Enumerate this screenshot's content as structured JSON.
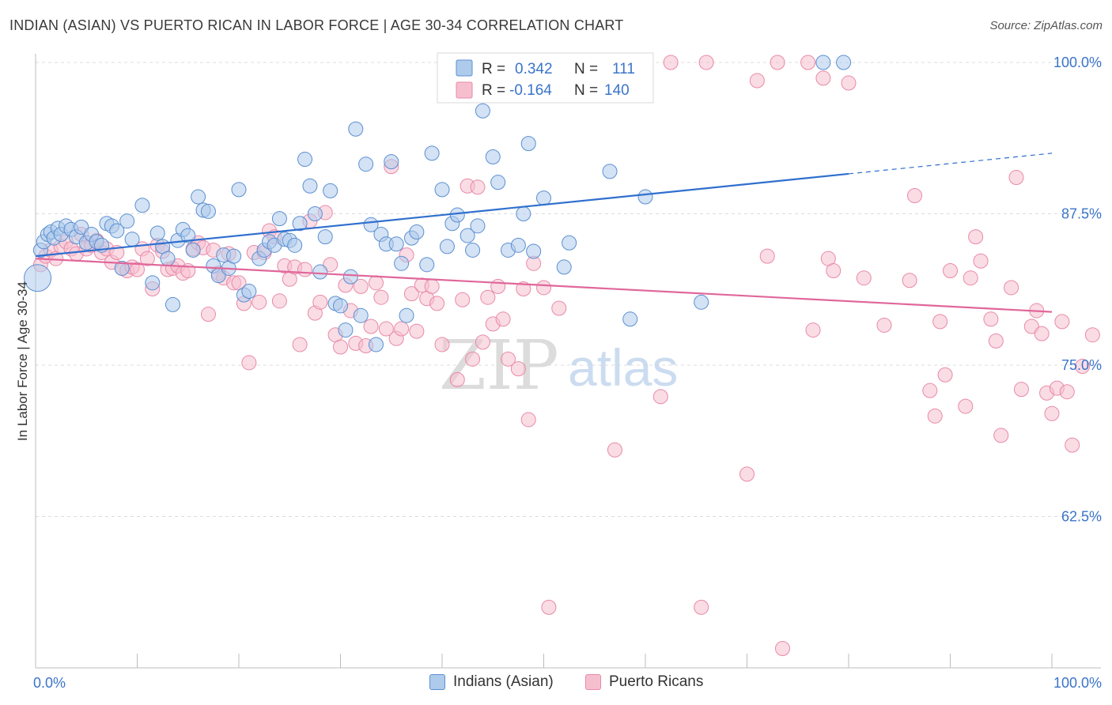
{
  "title": "INDIAN (ASIAN) VS PUERTO RICAN IN LABOR FORCE | AGE 30-34 CORRELATION CHART",
  "source": "Source: ZipAtlas.com",
  "watermark": {
    "zip": "ZIP",
    "atlas": "atlas"
  },
  "legend": {
    "rows": [
      {
        "r_label": "R =",
        "r_value": "0.342",
        "n_label": "N =",
        "n_value": "111"
      },
      {
        "r_label": "R =",
        "r_value": "-0.164",
        "n_label": "N =",
        "n_value": "140"
      }
    ],
    "bottom": [
      "Indians (Asian)",
      "Puerto Ricans"
    ]
  },
  "colors": {
    "indian_fill": "#aecbeb",
    "indian_stroke": "#5b8fd1",
    "indian_line": "#2f6fce",
    "pr_fill": "#f6bfd0",
    "pr_stroke": "#e88aa8",
    "pr_line": "#e0679a",
    "value_text": "#3a74c9",
    "axis_text": "#3a74c9",
    "grid": "#dcdcdc"
  },
  "chart_data": {
    "type": "scatter",
    "xlabel": "",
    "ylabel": "In Labor Force | Age 30-34",
    "xlim": [
      0,
      100
    ],
    "ylim": [
      50,
      100
    ],
    "x_tick_labels": [
      "0.0%",
      "100.0%"
    ],
    "y_ticks": [
      62.5,
      75.0,
      87.5,
      100.0
    ],
    "y_tick_labels": [
      "62.5%",
      "75.0%",
      "87.5%",
      "100.0%"
    ],
    "grid": "horizontal dashed",
    "legend_position": "top-center",
    "series": [
      {
        "name": "Indians (Asian)",
        "trend": {
          "x0": 0,
          "y0": 84.0,
          "x1": 80,
          "y1": 90.8,
          "dashed_to_x": 100,
          "dashed_to_y": 92.5
        },
        "points": [
          [
            0.2,
            82.2
          ],
          [
            0.5,
            84.5
          ],
          [
            0.8,
            85.2
          ],
          [
            1.2,
            85.8
          ],
          [
            1.5,
            86.0
          ],
          [
            1.8,
            85.5
          ],
          [
            2.2,
            86.3
          ],
          [
            2.5,
            85.8
          ],
          [
            3.0,
            86.5
          ],
          [
            3.5,
            86.2
          ],
          [
            4.0,
            85.6
          ],
          [
            4.5,
            86.4
          ],
          [
            5.0,
            85.1
          ],
          [
            5.5,
            85.8
          ],
          [
            6.0,
            85.2
          ],
          [
            6.5,
            84.9
          ],
          [
            7.0,
            86.7
          ],
          [
            7.5,
            86.5
          ],
          [
            8.0,
            86.1
          ],
          [
            8.5,
            83.0
          ],
          [
            9.0,
            86.9
          ],
          [
            9.5,
            85.4
          ],
          [
            10.5,
            88.2
          ],
          [
            11.5,
            81.8
          ],
          [
            12.0,
            85.9
          ],
          [
            12.5,
            84.8
          ],
          [
            13.0,
            83.8
          ],
          [
            13.5,
            80.0
          ],
          [
            14.0,
            85.3
          ],
          [
            14.5,
            86.2
          ],
          [
            15.0,
            85.7
          ],
          [
            15.5,
            84.5
          ],
          [
            16.0,
            88.9
          ],
          [
            16.5,
            87.8
          ],
          [
            17.0,
            87.7
          ],
          [
            17.5,
            83.2
          ],
          [
            18.0,
            82.4
          ],
          [
            18.5,
            84.1
          ],
          [
            19.0,
            83.0
          ],
          [
            19.5,
            84.0
          ],
          [
            20.0,
            89.5
          ],
          [
            20.5,
            80.8
          ],
          [
            21.0,
            81.1
          ],
          [
            22.0,
            83.8
          ],
          [
            22.5,
            84.5
          ],
          [
            23.0,
            85.2
          ],
          [
            23.5,
            84.9
          ],
          [
            24.0,
            87.1
          ],
          [
            24.5,
            85.4
          ],
          [
            25.0,
            85.3
          ],
          [
            25.5,
            84.9
          ],
          [
            26.0,
            86.7
          ],
          [
            26.5,
            92.0
          ],
          [
            27.0,
            89.8
          ],
          [
            27.5,
            87.5
          ],
          [
            28.0,
            82.7
          ],
          [
            28.5,
            85.6
          ],
          [
            29.0,
            89.4
          ],
          [
            29.5,
            80.1
          ],
          [
            30.0,
            79.9
          ],
          [
            30.5,
            77.9
          ],
          [
            31.0,
            82.3
          ],
          [
            31.5,
            94.5
          ],
          [
            32.0,
            79.1
          ],
          [
            32.5,
            91.6
          ],
          [
            33.0,
            86.6
          ],
          [
            33.5,
            76.7
          ],
          [
            34.0,
            85.8
          ],
          [
            34.5,
            85.0
          ],
          [
            35.0,
            91.8
          ],
          [
            35.5,
            85.0
          ],
          [
            36.0,
            83.4
          ],
          [
            36.5,
            79.1
          ],
          [
            37.0,
            85.5
          ],
          [
            37.5,
            86.0
          ],
          [
            38.5,
            83.3
          ],
          [
            39.0,
            92.5
          ],
          [
            40.0,
            89.5
          ],
          [
            40.5,
            84.8
          ],
          [
            41.0,
            86.7
          ],
          [
            41.5,
            87.4
          ],
          [
            42.5,
            85.7
          ],
          [
            43.0,
            84.5
          ],
          [
            43.5,
            86.5
          ],
          [
            44.0,
            96.0
          ],
          [
            45.0,
            92.2
          ],
          [
            45.5,
            90.1
          ],
          [
            46.5,
            84.5
          ],
          [
            47.5,
            84.9
          ],
          [
            48.0,
            87.5
          ],
          [
            48.5,
            93.3
          ],
          [
            49.0,
            84.4
          ],
          [
            50.0,
            88.8
          ],
          [
            51.5,
            100.0
          ],
          [
            52.0,
            83.1
          ],
          [
            52.5,
            85.1
          ],
          [
            55.0,
            100.0
          ],
          [
            55.5,
            100.0
          ],
          [
            56.5,
            91.0
          ],
          [
            58.5,
            78.8
          ],
          [
            60.0,
            88.9
          ],
          [
            65.5,
            80.2
          ],
          [
            77.5,
            100.0
          ],
          [
            79.5,
            100.0
          ]
        ]
      },
      {
        "name": "Puerto Ricans",
        "trend": {
          "x0": 0,
          "y0": 83.8,
          "x1": 100,
          "y1": 79.4
        },
        "points": [
          [
            0.5,
            83.3
          ],
          [
            1.0,
            84.0
          ],
          [
            1.5,
            84.5
          ],
          [
            2.0,
            83.8
          ],
          [
            2.5,
            84.8
          ],
          [
            3.0,
            85.2
          ],
          [
            3.5,
            84.6
          ],
          [
            4.0,
            84.2
          ],
          [
            4.5,
            85.8
          ],
          [
            5.0,
            84.6
          ],
          [
            5.5,
            84.9
          ],
          [
            6.0,
            85.3
          ],
          [
            6.5,
            84.3
          ],
          [
            7.0,
            84.6
          ],
          [
            7.5,
            83.5
          ],
          [
            8.0,
            84.3
          ],
          [
            8.5,
            83.0
          ],
          [
            9.0,
            82.8
          ],
          [
            9.5,
            83.1
          ],
          [
            10.0,
            82.9
          ],
          [
            10.5,
            84.6
          ],
          [
            11.0,
            83.8
          ],
          [
            11.5,
            81.3
          ],
          [
            12.0,
            84.9
          ],
          [
            12.5,
            84.4
          ],
          [
            13.0,
            82.9
          ],
          [
            13.5,
            83.0
          ],
          [
            14.0,
            83.2
          ],
          [
            14.5,
            82.6
          ],
          [
            15.0,
            82.8
          ],
          [
            15.5,
            84.6
          ],
          [
            16.0,
            85.1
          ],
          [
            16.5,
            84.7
          ],
          [
            17.0,
            79.2
          ],
          [
            17.5,
            84.5
          ],
          [
            18.0,
            82.6
          ],
          [
            18.5,
            82.2
          ],
          [
            19.0,
            84.2
          ],
          [
            19.5,
            81.8
          ],
          [
            20.0,
            81.8
          ],
          [
            20.5,
            80.1
          ],
          [
            21.0,
            75.2
          ],
          [
            21.5,
            84.3
          ],
          [
            22.0,
            80.2
          ],
          [
            22.5,
            84.3
          ],
          [
            23.0,
            86.1
          ],
          [
            23.5,
            85.6
          ],
          [
            24.0,
            80.3
          ],
          [
            24.5,
            83.2
          ],
          [
            25.0,
            82.1
          ],
          [
            25.5,
            83.1
          ],
          [
            26.0,
            76.7
          ],
          [
            26.5,
            82.9
          ],
          [
            27.0,
            86.9
          ],
          [
            27.5,
            79.3
          ],
          [
            28.0,
            80.2
          ],
          [
            28.5,
            87.6
          ],
          [
            29.0,
            83.3
          ],
          [
            29.5,
            77.5
          ],
          [
            30.0,
            76.5
          ],
          [
            30.5,
            81.6
          ],
          [
            31.0,
            79.5
          ],
          [
            31.5,
            76.8
          ],
          [
            32.0,
            81.5
          ],
          [
            32.5,
            76.6
          ],
          [
            33.0,
            78.2
          ],
          [
            33.5,
            81.8
          ],
          [
            34.0,
            80.6
          ],
          [
            34.5,
            78.0
          ],
          [
            35.0,
            91.4
          ],
          [
            35.5,
            77.2
          ],
          [
            36.0,
            78.0
          ],
          [
            36.5,
            84.1
          ],
          [
            37.0,
            80.9
          ],
          [
            37.5,
            77.8
          ],
          [
            38.0,
            81.6
          ],
          [
            38.5,
            80.5
          ],
          [
            39.0,
            81.5
          ],
          [
            39.5,
            80.1
          ],
          [
            40.0,
            76.7
          ],
          [
            41.5,
            73.8
          ],
          [
            42.0,
            80.4
          ],
          [
            42.5,
            89.8
          ],
          [
            43.0,
            75.5
          ],
          [
            43.5,
            89.7
          ],
          [
            44.0,
            76.9
          ],
          [
            44.5,
            80.6
          ],
          [
            45.0,
            78.4
          ],
          [
            45.5,
            81.5
          ],
          [
            46.0,
            78.8
          ],
          [
            46.5,
            75.5
          ],
          [
            47.5,
            74.7
          ],
          [
            48.0,
            81.3
          ],
          [
            48.5,
            70.5
          ],
          [
            49.0,
            83.4
          ],
          [
            50.0,
            81.4
          ],
          [
            50.5,
            55.0
          ],
          [
            51.5,
            79.7
          ],
          [
            53.5,
            100.0
          ],
          [
            54.0,
            100.0
          ],
          [
            55.0,
            100.0
          ],
          [
            57.0,
            68.0
          ],
          [
            58.5,
            100.0
          ],
          [
            59.0,
            100.0
          ],
          [
            61.5,
            72.4
          ],
          [
            62.5,
            100.0
          ],
          [
            65.5,
            55.0
          ],
          [
            66.0,
            100.0
          ],
          [
            70.0,
            66.0
          ],
          [
            71.0,
            98.5
          ],
          [
            72.0,
            84.0
          ],
          [
            73.0,
            100.0
          ],
          [
            73.5,
            51.6
          ],
          [
            76.0,
            100.0
          ],
          [
            76.5,
            77.9
          ],
          [
            77.5,
            98.7
          ],
          [
            78.0,
            83.8
          ],
          [
            78.5,
            82.8
          ],
          [
            80.0,
            98.3
          ],
          [
            81.5,
            82.2
          ],
          [
            83.5,
            78.3
          ],
          [
            86.0,
            82.0
          ],
          [
            86.5,
            89.0
          ],
          [
            88.0,
            72.9
          ],
          [
            88.5,
            70.8
          ],
          [
            89.0,
            78.6
          ],
          [
            89.5,
            74.2
          ],
          [
            90.0,
            82.8
          ],
          [
            91.5,
            71.6
          ],
          [
            92.0,
            82.2
          ],
          [
            92.5,
            85.6
          ],
          [
            93.0,
            83.6
          ],
          [
            94.0,
            78.8
          ],
          [
            94.5,
            77.0
          ],
          [
            95.0,
            69.2
          ],
          [
            96.0,
            81.4
          ],
          [
            96.5,
            90.5
          ],
          [
            97.0,
            73.0
          ],
          [
            98.0,
            78.2
          ],
          [
            98.5,
            79.5
          ],
          [
            99.0,
            77.6
          ],
          [
            99.5,
            72.7
          ],
          [
            100.0,
            71.0
          ],
          [
            100.5,
            73.1
          ],
          [
            101.0,
            78.6
          ],
          [
            101.5,
            72.8
          ],
          [
            102.0,
            68.4
          ],
          [
            103.0,
            74.9
          ],
          [
            104.0,
            77.5
          ]
        ]
      }
    ]
  }
}
